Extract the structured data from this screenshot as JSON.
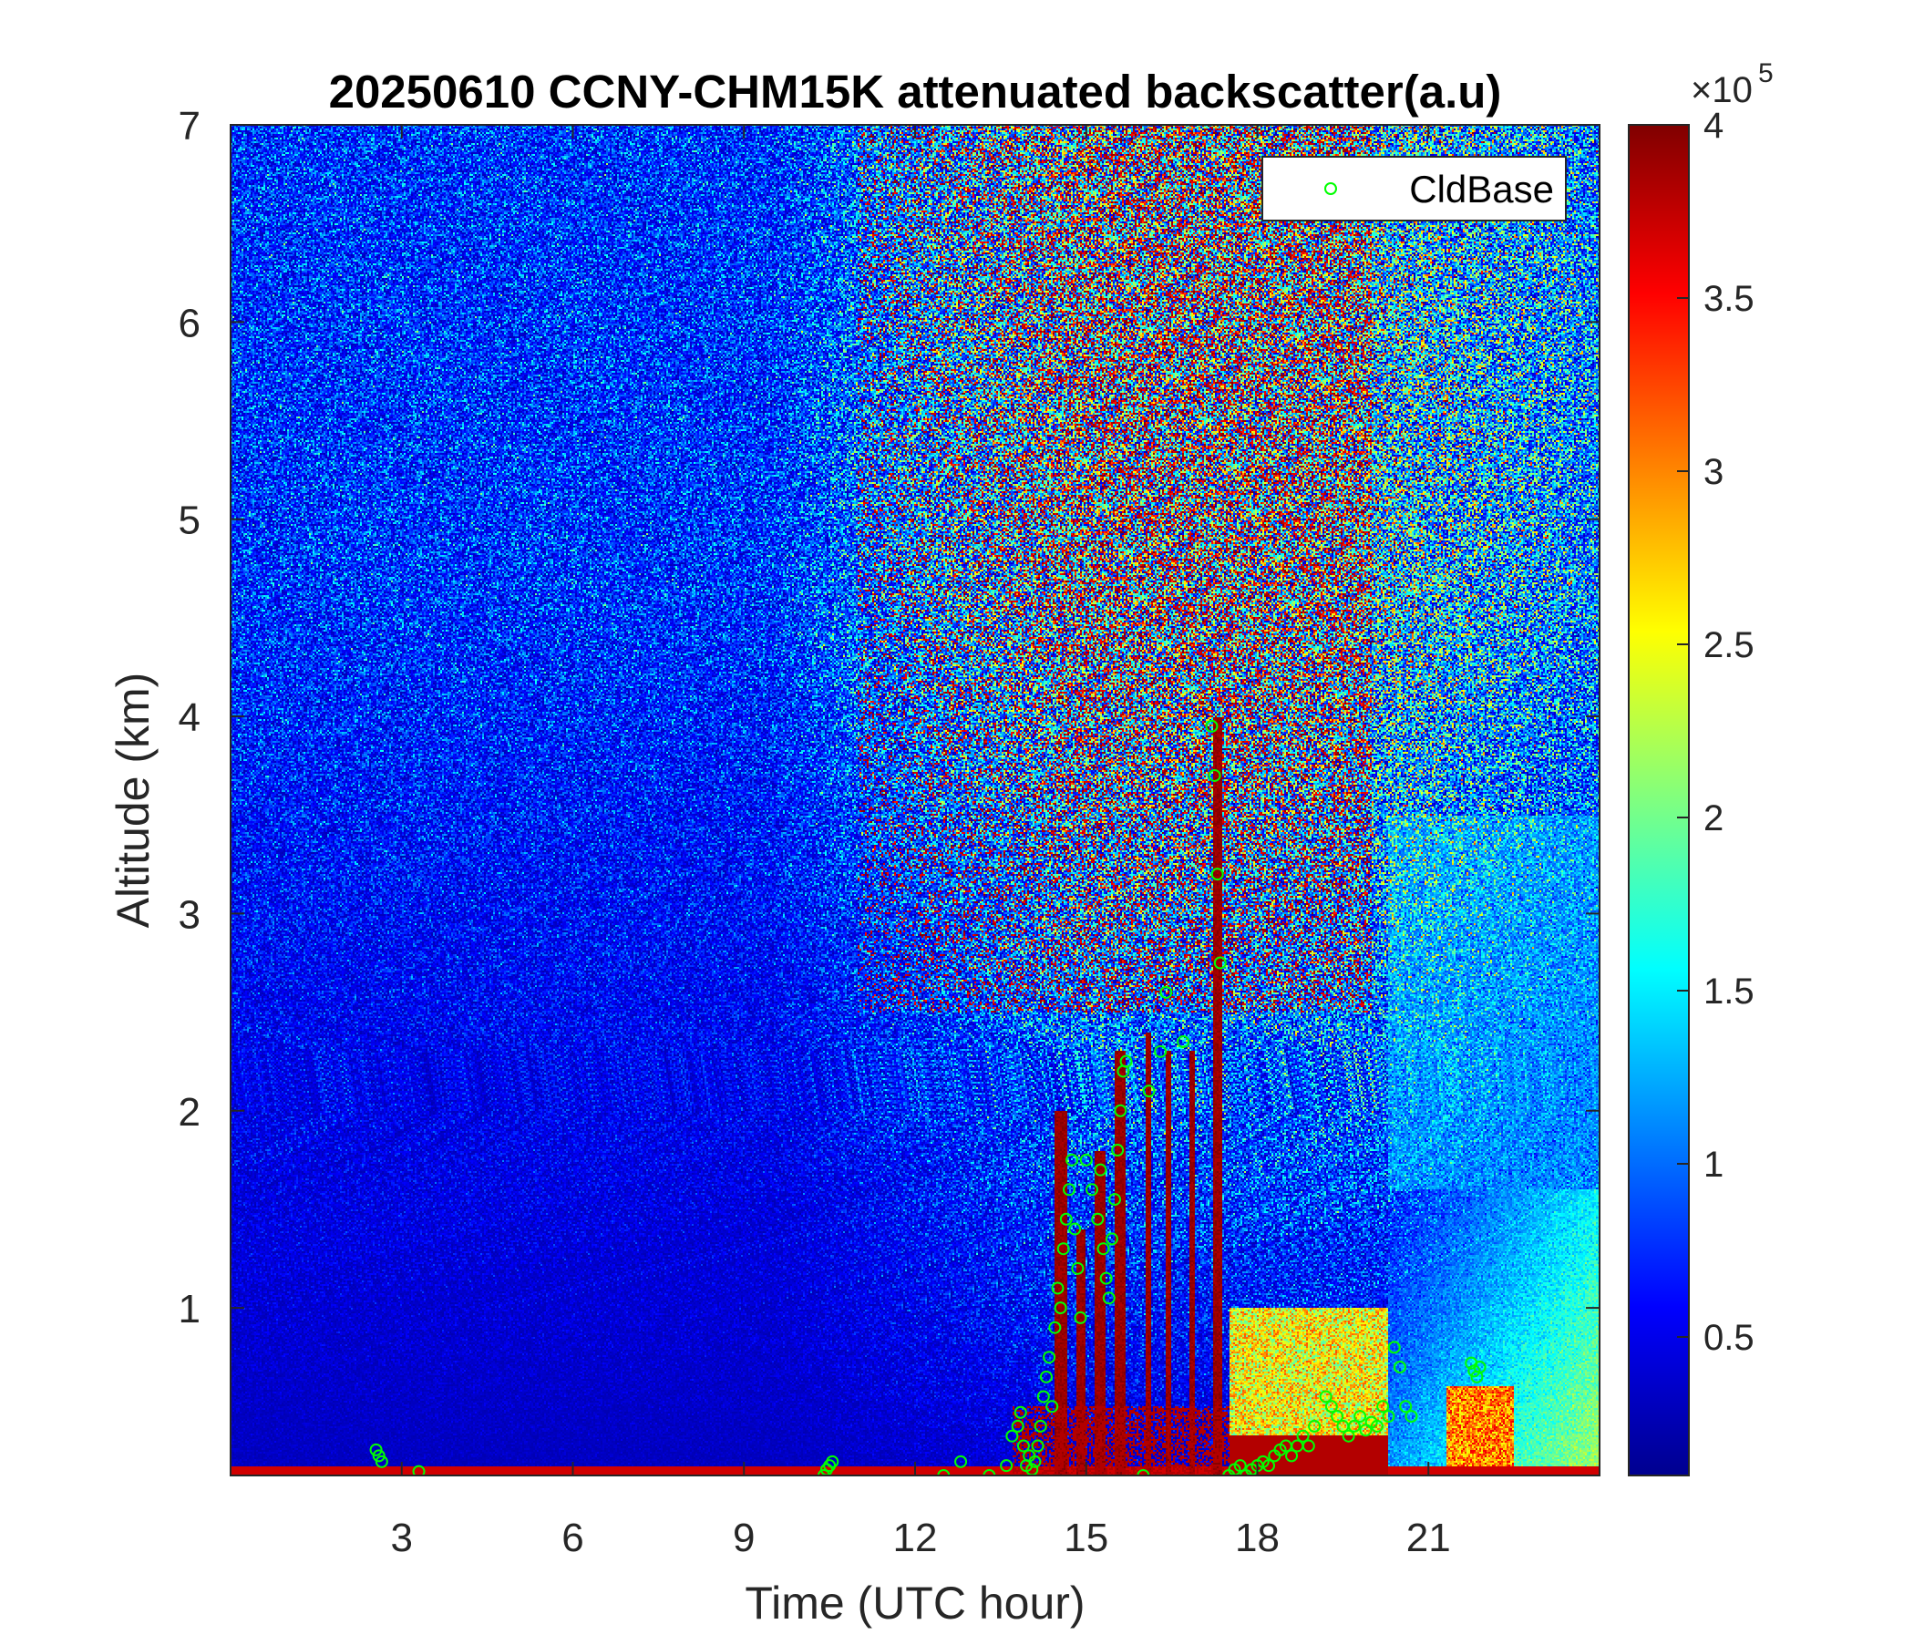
{
  "chart_data": {
    "type": "heatmap",
    "title": "20250610 CCNY-CHM15K attenuated backscatter(a.u)",
    "xlabel": "Time (UTC hour)",
    "ylabel": "Altitude (km)",
    "xlim": [
      0,
      24
    ],
    "ylim": [
      0.15,
      7
    ],
    "x_ticks": [
      3,
      6,
      9,
      12,
      15,
      18,
      21
    ],
    "x_tick_labels": [
      "3",
      "6",
      "9",
      "12",
      "15",
      "18",
      "21"
    ],
    "y_ticks": [
      1,
      2,
      3,
      4,
      5,
      6,
      7
    ],
    "y_tick_labels": [
      "1",
      "2",
      "3",
      "4",
      "5",
      "6",
      "7"
    ],
    "colorbar": {
      "colormap": "jet",
      "range": [
        0.1,
        4
      ],
      "multiplier": "×10^5",
      "multiplier_base": "×10",
      "multiplier_exp": "5",
      "ticks": [
        0.5,
        1,
        1.5,
        2,
        2.5,
        3,
        3.5,
        4
      ],
      "tick_labels": [
        "0.5",
        "1",
        "1.5",
        "2",
        "2.5",
        "3",
        "3.5",
        "4"
      ]
    },
    "legend": {
      "location": "top-right",
      "entries": [
        {
          "label": "CldBase",
          "marker": "open-circle",
          "color": "#00ff00"
        }
      ]
    },
    "series": [
      {
        "name": "CldBase",
        "type": "scatter",
        "color": "#00ff00",
        "x": [
          2.55,
          2.6,
          2.65,
          3.3,
          10.4,
          10.45,
          10.5,
          10.55,
          12.5,
          12.8,
          13.3,
          13.6,
          13.7,
          13.8,
          13.85,
          13.9,
          13.95,
          14.0,
          14.05,
          14.1,
          14.15,
          14.2,
          14.25,
          14.3,
          14.35,
          14.4,
          14.45,
          14.5,
          14.55,
          14.6,
          14.65,
          14.7,
          14.75,
          14.8,
          14.85,
          14.9,
          15.0,
          15.1,
          15.2,
          15.25,
          15.3,
          15.35,
          15.4,
          15.45,
          15.5,
          15.55,
          15.6,
          15.65,
          15.7,
          16.0,
          16.1,
          16.3,
          16.4,
          16.7,
          17.2,
          17.25,
          17.3,
          17.35,
          17.5,
          17.6,
          17.7,
          17.8,
          17.9,
          18.0,
          18.1,
          18.2,
          18.3,
          18.4,
          18.5,
          18.6,
          18.7,
          18.8,
          18.9,
          19.0,
          19.2,
          19.3,
          19.4,
          19.5,
          19.6,
          19.7,
          19.8,
          19.9,
          20.0,
          20.1,
          20.2,
          20.3,
          20.4,
          20.5,
          20.6,
          20.7,
          21.75,
          21.8,
          21.85,
          21.9
        ],
        "y": [
          0.28,
          0.25,
          0.22,
          0.17,
          0.15,
          0.18,
          0.2,
          0.22,
          0.15,
          0.22,
          0.15,
          0.2,
          0.35,
          0.4,
          0.47,
          0.3,
          0.2,
          0.25,
          0.18,
          0.22,
          0.3,
          0.4,
          0.55,
          0.65,
          0.75,
          0.5,
          0.9,
          1.1,
          1.0,
          1.3,
          1.45,
          1.6,
          1.75,
          1.4,
          1.2,
          0.95,
          1.75,
          1.6,
          1.45,
          1.7,
          1.3,
          1.15,
          1.05,
          1.35,
          1.55,
          1.8,
          2.0,
          2.2,
          2.25,
          0.15,
          2.1,
          2.3,
          2.6,
          2.35,
          3.95,
          3.7,
          3.2,
          2.75,
          0.15,
          0.18,
          0.2,
          0.15,
          0.18,
          0.2,
          0.22,
          0.2,
          0.25,
          0.28,
          0.3,
          0.25,
          0.3,
          0.35,
          0.3,
          0.4,
          0.55,
          0.5,
          0.45,
          0.4,
          0.35,
          0.4,
          0.45,
          0.38,
          0.42,
          0.4,
          0.5,
          0.45,
          0.8,
          0.7,
          0.5,
          0.45,
          0.72,
          0.68,
          0.65,
          0.7
        ]
      }
    ],
    "backscatter_description": {
      "surface_layer_high": true,
      "clouds_at_hours": [
        14.5,
        15.0,
        15.5,
        16.0,
        16.5,
        17.3,
        19.5
      ],
      "boundary_layer_top_km_after_17h": 1.2
    }
  }
}
